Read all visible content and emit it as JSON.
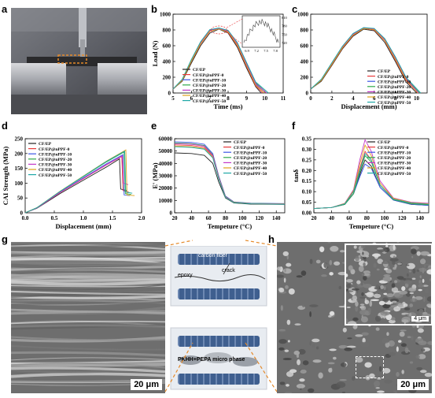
{
  "panel_labels": [
    "a",
    "b",
    "c",
    "d",
    "e",
    "f",
    "g",
    "h"
  ],
  "legend": [
    "CF/EP",
    "CF/EP@nPPF-0",
    "CF/EP@nPPF-10",
    "CF/EP@nPPF-20",
    "CF/EP@nPPF-30",
    "CF/EP@nPPF-40",
    "CF/EP@nPPF-50"
  ],
  "series_colors": [
    "#222222",
    "#e8393a",
    "#3b55e6",
    "#2ea84a",
    "#c338c9",
    "#e0a21b",
    "#1fa8a6"
  ],
  "schematic": {
    "top_label": "carbon fiber",
    "crack_label": "crack",
    "epoxy_label": "epoxy",
    "bottom_label": "PKHH+PEPA micro phase"
  },
  "scalebars": {
    "g": "20 μm",
    "h": "20 μm",
    "h_inset": "4 μm"
  },
  "chart_data": [
    {
      "panel": "b",
      "type": "line",
      "xlabel": "Time (ms)",
      "ylabel": "Load (N)",
      "xlim": [
        5,
        11
      ],
      "ylim": [
        0,
        1000
      ],
      "xticks": [
        5,
        6,
        7,
        8,
        9,
        10,
        11
      ],
      "yticks": [
        0,
        200,
        400,
        600,
        800,
        1000
      ],
      "series": [
        {
          "name": "CF/EP",
          "x": [
            5,
            5.5,
            6,
            6.5,
            7,
            7.5,
            8,
            8.5,
            9,
            9.5,
            9.8
          ],
          "y": [
            50,
            150,
            380,
            600,
            760,
            810,
            760,
            580,
            320,
            80,
            0
          ]
        },
        {
          "name": "CF/EP@nPPF-0",
          "x": [
            5,
            5.5,
            6,
            6.5,
            7,
            7.5,
            8,
            8.5,
            9,
            9.5,
            9.9
          ],
          "y": [
            50,
            160,
            400,
            620,
            780,
            820,
            770,
            600,
            340,
            90,
            0
          ]
        },
        {
          "name": "CF/EP@nPPF-10",
          "x": [
            5,
            5.5,
            6,
            6.5,
            7,
            7.5,
            8,
            8.5,
            9,
            9.5,
            10
          ],
          "y": [
            50,
            170,
            410,
            630,
            790,
            815,
            780,
            620,
            360,
            110,
            0
          ]
        },
        {
          "name": "CF/EP@nPPF-20",
          "x": [
            5,
            5.5,
            6,
            6.5,
            7,
            7.5,
            8,
            8.5,
            9,
            9.5,
            10.1
          ],
          "y": [
            50,
            170,
            420,
            640,
            800,
            820,
            790,
            630,
            380,
            130,
            0
          ]
        },
        {
          "name": "CF/EP@nPPF-30",
          "x": [
            5,
            5.5,
            6,
            6.5,
            7,
            7.5,
            8,
            8.5,
            9,
            9.5,
            10.1
          ],
          "y": [
            50,
            165,
            415,
            635,
            795,
            818,
            785,
            625,
            370,
            120,
            0
          ]
        },
        {
          "name": "CF/EP@nPPF-40",
          "x": [
            5,
            5.5,
            6,
            6.5,
            7,
            7.5,
            8,
            8.5,
            9,
            9.5,
            10
          ],
          "y": [
            50,
            160,
            405,
            625,
            785,
            812,
            775,
            610,
            350,
            100,
            0
          ]
        },
        {
          "name": "CF/EP@nPPF-50",
          "x": [
            5,
            5.5,
            6,
            6.5,
            7,
            7.5,
            8,
            8.5,
            9,
            9.5,
            10.2
          ],
          "y": [
            50,
            175,
            425,
            650,
            805,
            825,
            795,
            640,
            390,
            140,
            0
          ]
        }
      ],
      "inset": {
        "xticks": [
          "6.9",
          "7.2",
          "7.5",
          "7.8"
        ],
        "yticks": [
          "720",
          "750",
          "780",
          "810"
        ]
      }
    },
    {
      "panel": "c",
      "type": "line",
      "xlabel": "Displacement (mm)",
      "ylabel": "",
      "xlim": [
        0,
        11
      ],
      "ylim": [
        0,
        1000
      ],
      "xticks": [
        0,
        2,
        4,
        6,
        8,
        10
      ],
      "yticks": [
        0,
        200,
        400,
        600,
        800,
        1000
      ],
      "series": [
        {
          "name": "CF/EP",
          "x": [
            0,
            1,
            2,
            3,
            4,
            5,
            6,
            7,
            8,
            9,
            10
          ],
          "y": [
            50,
            150,
            350,
            560,
            720,
            810,
            790,
            640,
            400,
            140,
            0
          ]
        },
        {
          "name": "CF/EP@nPPF-0",
          "x": [
            0,
            1,
            2,
            3,
            4,
            5,
            6,
            7,
            8,
            9,
            10.1
          ],
          "y": [
            50,
            160,
            360,
            570,
            730,
            820,
            800,
            660,
            420,
            160,
            0
          ]
        },
        {
          "name": "CF/EP@nPPF-10",
          "x": [
            0,
            1,
            2,
            3,
            4,
            5,
            6,
            7,
            8,
            9,
            10.2
          ],
          "y": [
            50,
            165,
            370,
            580,
            740,
            820,
            810,
            670,
            440,
            180,
            0
          ]
        },
        {
          "name": "CF/EP@nPPF-20",
          "x": [
            0,
            1,
            2,
            3,
            4,
            5,
            6,
            7,
            8,
            9,
            10.3
          ],
          "y": [
            50,
            170,
            380,
            590,
            750,
            825,
            815,
            680,
            450,
            190,
            0
          ]
        },
        {
          "name": "CF/EP@nPPF-30",
          "x": [
            0,
            1,
            2,
            3,
            4,
            5,
            6,
            7,
            8,
            9,
            10.2
          ],
          "y": [
            50,
            165,
            375,
            585,
            745,
            822,
            812,
            675,
            445,
            185,
            0
          ]
        },
        {
          "name": "CF/EP@nPPF-40",
          "x": [
            0,
            1,
            2,
            3,
            4,
            5,
            6,
            7,
            8,
            9,
            10.1
          ],
          "y": [
            50,
            160,
            365,
            575,
            735,
            818,
            805,
            665,
            430,
            170,
            0
          ]
        },
        {
          "name": "CF/EP@nPPF-50",
          "x": [
            0,
            1,
            2,
            3,
            4,
            5,
            6,
            7,
            8,
            9,
            10.4
          ],
          "y": [
            50,
            175,
            385,
            595,
            755,
            830,
            820,
            690,
            460,
            200,
            0
          ]
        }
      ]
    },
    {
      "panel": "d",
      "type": "line",
      "xlabel": "Displacement (mm)",
      "ylabel": "CAI Strength (MPa)",
      "xlim": [
        0,
        2.0
      ],
      "ylim": [
        0,
        250
      ],
      "xticks": [
        "0.0",
        "0.5",
        "1.0",
        "1.5",
        "2.0"
      ],
      "yticks": [
        0,
        50,
        100,
        150,
        200,
        250
      ],
      "series": [
        {
          "name": "CF/EP",
          "x": [
            0,
            0.2,
            0.6,
            1.0,
            1.4,
            1.62,
            1.64,
            1.75
          ],
          "y": [
            0,
            15,
            65,
            110,
            155,
            182,
            80,
            75
          ]
        },
        {
          "name": "CF/EP@nPPF-0",
          "x": [
            0,
            0.2,
            0.6,
            1.0,
            1.4,
            1.66,
            1.68,
            1.78
          ],
          "y": [
            0,
            16,
            68,
            115,
            162,
            190,
            75,
            70
          ]
        },
        {
          "name": "CF/EP@nPPF-10",
          "x": [
            0,
            0.2,
            0.6,
            1.0,
            1.4,
            1.68,
            1.7,
            1.8
          ],
          "y": [
            0,
            16,
            70,
            118,
            166,
            196,
            60,
            58
          ]
        },
        {
          "name": "CF/EP@nPPF-20",
          "x": [
            0,
            0.2,
            0.6,
            1.0,
            1.4,
            1.7,
            1.72,
            1.82
          ],
          "y": [
            0,
            17,
            72,
            122,
            172,
            205,
            65,
            62
          ]
        },
        {
          "name": "CF/EP@nPPF-30",
          "x": [
            0,
            0.2,
            0.6,
            1.0,
            1.4,
            1.67,
            1.69,
            1.77
          ],
          "y": [
            0,
            16,
            69,
            116,
            163,
            192,
            100,
            95
          ]
        },
        {
          "name": "CF/EP@nPPF-40",
          "x": [
            0,
            0.2,
            0.6,
            1.0,
            1.4,
            1.73,
            1.75,
            1.88
          ],
          "y": [
            0,
            17,
            73,
            124,
            175,
            212,
            60,
            58
          ]
        },
        {
          "name": "CF/EP@nPPF-50",
          "x": [
            0,
            0.2,
            0.6,
            1.0,
            1.4,
            1.71,
            1.73,
            1.84
          ],
          "y": [
            0,
            17,
            72,
            123,
            174,
            208,
            70,
            66
          ]
        }
      ]
    },
    {
      "panel": "e",
      "type": "line",
      "xlabel": "Tempeture (°C)",
      "ylabel": "E' (MPa)",
      "xlim": [
        20,
        150
      ],
      "ylim": [
        0,
        60000
      ],
      "xticks": [
        20,
        40,
        60,
        80,
        100,
        120,
        140
      ],
      "yticks": [
        0,
        10000,
        20000,
        30000,
        40000,
        50000,
        60000
      ],
      "series": [
        {
          "name": "CF/EP",
          "x": [
            20,
            40,
            55,
            65,
            72,
            80,
            90,
            110,
            150
          ],
          "y": [
            48500,
            48000,
            46500,
            40000,
            25000,
            12000,
            8000,
            7000,
            6800
          ]
        },
        {
          "name": "CF/EP@nPPF-0",
          "x": [
            20,
            40,
            55,
            65,
            72,
            80,
            90,
            110,
            150
          ],
          "y": [
            55000,
            54500,
            53000,
            46000,
            29000,
            13000,
            8500,
            7500,
            7200
          ]
        },
        {
          "name": "CF/EP@nPPF-10",
          "x": [
            20,
            40,
            55,
            65,
            72,
            80,
            90,
            110,
            150
          ],
          "y": [
            57500,
            57000,
            55500,
            48000,
            30000,
            13500,
            8800,
            7800,
            7500
          ]
        },
        {
          "name": "CF/EP@nPPF-20",
          "x": [
            20,
            40,
            55,
            65,
            72,
            80,
            90,
            110,
            150
          ],
          "y": [
            56500,
            56000,
            54500,
            47000,
            29500,
            13200,
            8600,
            7600,
            7300
          ]
        },
        {
          "name": "CF/EP@nPPF-30",
          "x": [
            20,
            40,
            55,
            65,
            72,
            80,
            90,
            110,
            150
          ],
          "y": [
            56000,
            55500,
            54000,
            46500,
            29200,
            13000,
            8500,
            7500,
            7200
          ]
        },
        {
          "name": "CF/EP@nPPF-40",
          "x": [
            20,
            40,
            55,
            65,
            72,
            80,
            90,
            110,
            150
          ],
          "y": [
            54000,
            53500,
            52000,
            45000,
            28000,
            12500,
            8300,
            7300,
            7000
          ]
        },
        {
          "name": "CF/EP@nPPF-50",
          "x": [
            20,
            40,
            55,
            65,
            72,
            80,
            90,
            110,
            150
          ],
          "y": [
            53500,
            53000,
            51500,
            44500,
            27500,
            12400,
            8200,
            7200,
            6900
          ]
        }
      ]
    },
    {
      "panel": "f",
      "type": "line",
      "xlabel": "Tempeture (°C)",
      "ylabel": "tanδ",
      "xlim": [
        20,
        150
      ],
      "ylim": [
        0,
        0.35
      ],
      "xticks": [
        20,
        40,
        60,
        80,
        100,
        120,
        140
      ],
      "yticks": [
        "0.00",
        "0.05",
        "0.10",
        "0.15",
        "0.20",
        "0.25",
        "0.30",
        "0.35"
      ],
      "series": [
        {
          "name": "CF/EP",
          "x": [
            20,
            40,
            55,
            65,
            72,
            78,
            85,
            95,
            110,
            130,
            150
          ],
          "y": [
            0.02,
            0.025,
            0.04,
            0.09,
            0.18,
            0.25,
            0.22,
            0.12,
            0.06,
            0.04,
            0.035
          ]
        },
        {
          "name": "CF/EP@nPPF-0",
          "x": [
            20,
            40,
            55,
            65,
            72,
            78,
            85,
            95,
            110,
            130,
            150
          ],
          "y": [
            0.02,
            0.025,
            0.04,
            0.1,
            0.21,
            0.29,
            0.25,
            0.13,
            0.065,
            0.045,
            0.04
          ]
        },
        {
          "name": "CF/EP@nPPF-10",
          "x": [
            20,
            40,
            55,
            65,
            72,
            78,
            85,
            95,
            110,
            130,
            150
          ],
          "y": [
            0.02,
            0.025,
            0.04,
            0.09,
            0.17,
            0.23,
            0.21,
            0.12,
            0.06,
            0.04,
            0.035
          ]
        },
        {
          "name": "CF/EP@nPPF-20",
          "x": [
            20,
            40,
            55,
            65,
            72,
            78,
            85,
            95,
            110,
            130,
            150
          ],
          "y": [
            0.02,
            0.025,
            0.04,
            0.09,
            0.19,
            0.27,
            0.24,
            0.13,
            0.062,
            0.042,
            0.038
          ]
        },
        {
          "name": "CF/EP@nPPF-30",
          "x": [
            20,
            40,
            55,
            65,
            72,
            78,
            85,
            95,
            110,
            130,
            150
          ],
          "y": [
            0.02,
            0.025,
            0.045,
            0.11,
            0.25,
            0.345,
            0.29,
            0.15,
            0.07,
            0.05,
            0.045
          ]
        },
        {
          "name": "CF/EP@nPPF-40",
          "x": [
            20,
            40,
            55,
            65,
            72,
            78,
            85,
            95,
            110,
            130,
            150
          ],
          "y": [
            0.02,
            0.025,
            0.044,
            0.105,
            0.23,
            0.32,
            0.27,
            0.14,
            0.068,
            0.048,
            0.042
          ]
        },
        {
          "name": "CF/EP@nPPF-50",
          "x": [
            20,
            40,
            55,
            65,
            72,
            78,
            85,
            95,
            110,
            130,
            150
          ],
          "y": [
            0.02,
            0.025,
            0.042,
            0.1,
            0.2,
            0.28,
            0.25,
            0.13,
            0.064,
            0.046,
            0.04
          ]
        }
      ]
    }
  ]
}
